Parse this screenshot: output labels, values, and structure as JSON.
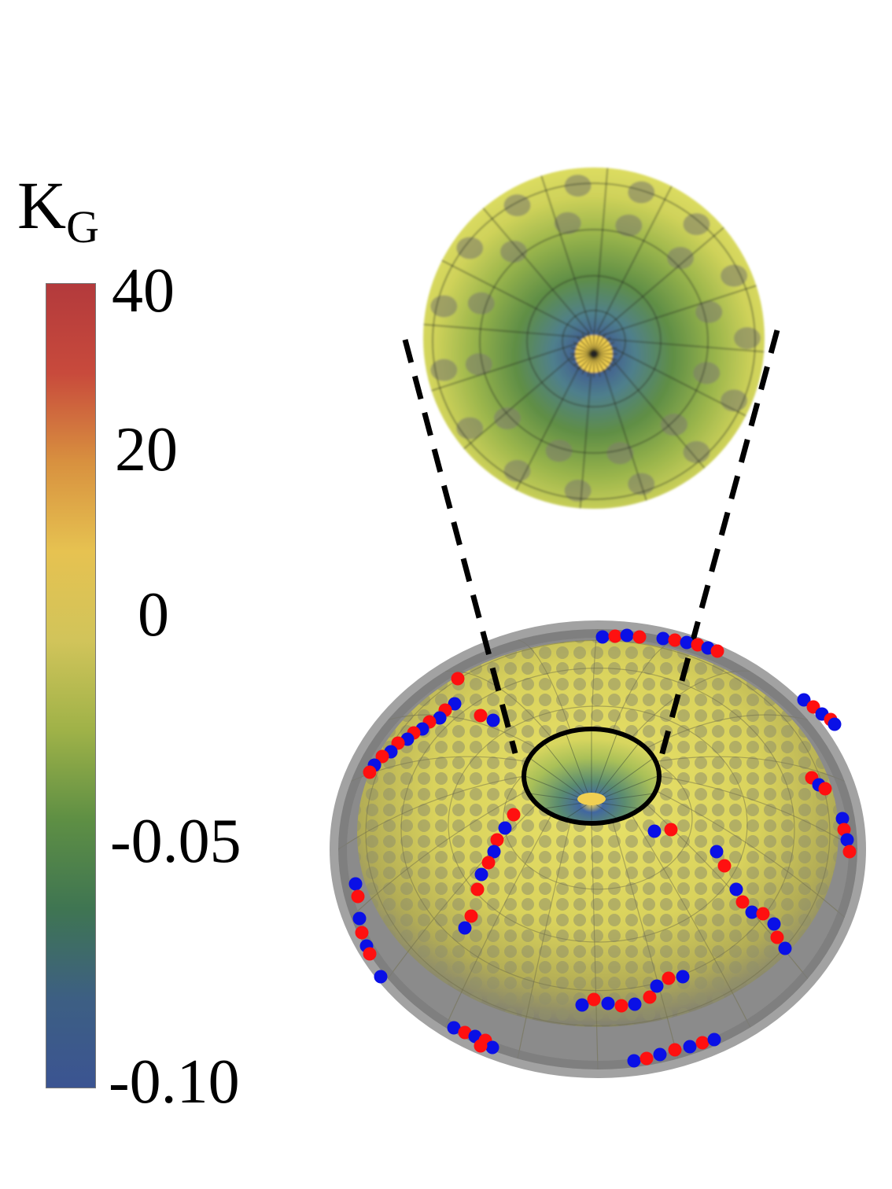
{
  "legend": {
    "symbol": "K",
    "subscript": "G",
    "ticks": [
      "40",
      "20",
      "0",
      "-0.05",
      "-0.10"
    ],
    "gradient": [
      "#b33a3c",
      "#c84a3c",
      "#d8913f",
      "#e6c251",
      "#d1c45a",
      "#9fb248",
      "#5e8f44",
      "#3f7552",
      "#3d5f83",
      "#3b5492"
    ]
  },
  "colors": {
    "surface_yellow": "#e3df5a",
    "surface_gray": "#8a8a8a",
    "defect_positive": "#ff1010",
    "defect_negative": "#0a10e6",
    "outline": "#000000"
  }
}
